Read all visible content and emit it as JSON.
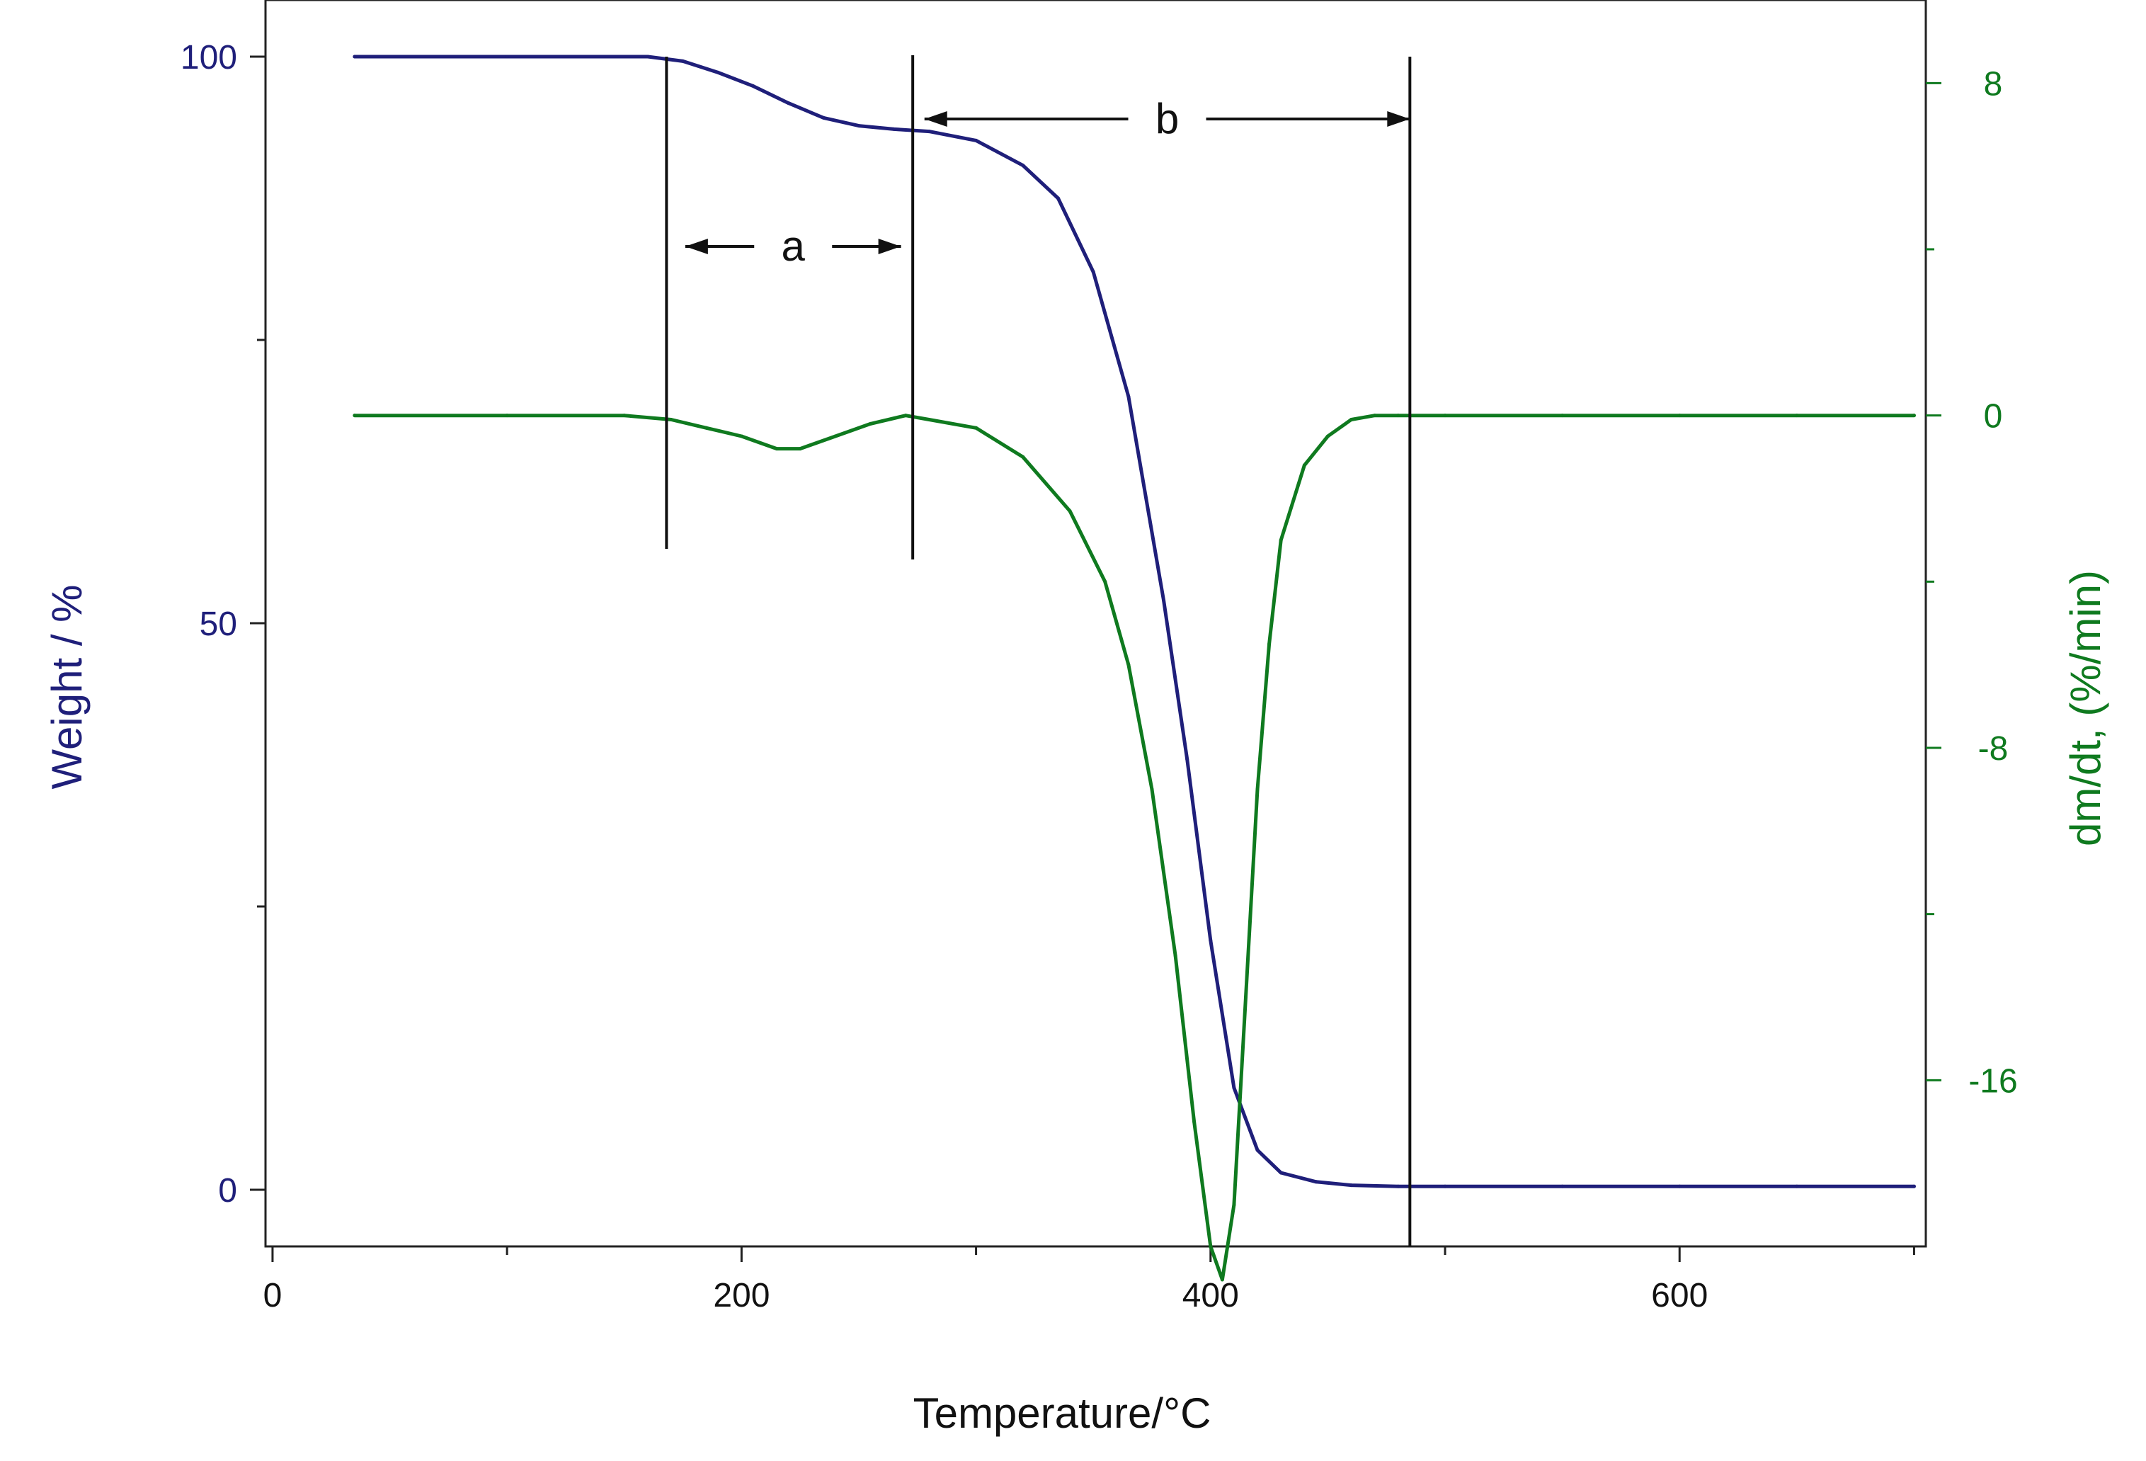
{
  "chart_data": {
    "type": "line",
    "title": "",
    "xlabel": "Temperature/°C",
    "ylabel_left": "Weight / %",
    "ylabel_right": "dm/dt, (%/min)",
    "xlim": [
      -3,
      705
    ],
    "ylim_left": [
      -5,
      105
    ],
    "ylim_right": [
      -20,
      10
    ],
    "x_ticks": [
      0,
      200,
      400,
      600
    ],
    "y_left_ticks": [
      0,
      50,
      100
    ],
    "y_right_ticks": [
      8,
      0,
      -8,
      -16
    ],
    "grid": false,
    "colors": {
      "weight": "#1f1f7a",
      "dmdt": "#0f7a1f",
      "annotation": "#111111"
    },
    "series": [
      {
        "name": "Weight",
        "axis": "left",
        "x": [
          35,
          100,
          160,
          175,
          190,
          205,
          220,
          235,
          250,
          265,
          280,
          300,
          320,
          335,
          350,
          365,
          380,
          390,
          400,
          410,
          420,
          430,
          445,
          460,
          480,
          500,
          550,
          600,
          650,
          700
        ],
        "values": [
          100,
          100,
          100,
          99.6,
          98.6,
          97.4,
          95.9,
          94.6,
          93.9,
          93.6,
          93.4,
          92.6,
          90.4,
          87.5,
          81.0,
          70.0,
          52.0,
          38.0,
          22.0,
          9.0,
          3.5,
          1.5,
          0.7,
          0.4,
          0.3,
          0.3,
          0.3,
          0.3,
          0.3,
          0.3
        ]
      },
      {
        "name": "dm/dt",
        "axis": "right",
        "x": [
          35,
          100,
          150,
          170,
          185,
          200,
          215,
          225,
          240,
          255,
          270,
          280,
          300,
          320,
          340,
          355,
          365,
          375,
          385,
          393,
          400,
          405,
          410,
          415,
          420,
          425,
          430,
          440,
          450,
          460,
          470,
          480,
          500,
          550,
          600,
          650,
          700
        ],
        "values": [
          0,
          0,
          0,
          -0.1,
          -0.3,
          -0.5,
          -0.8,
          -0.8,
          -0.5,
          -0.2,
          0.0,
          -0.1,
          -0.3,
          -1.0,
          -2.3,
          -4.0,
          -6.0,
          -9.0,
          -13.0,
          -17.0,
          -20.0,
          -20.8,
          -19.0,
          -14.0,
          -9.0,
          -5.5,
          -3.0,
          -1.2,
          -0.5,
          -0.1,
          0,
          0,
          0,
          0,
          0,
          0,
          0
        ]
      }
    ],
    "annotations": [
      {
        "type": "vline",
        "x": 168,
        "label": ""
      },
      {
        "type": "vline",
        "x": 273,
        "label": ""
      },
      {
        "type": "vline",
        "x": 485,
        "label": ""
      },
      {
        "type": "span-arrow",
        "label": "a",
        "x_from": 176,
        "x_to": 268
      },
      {
        "type": "span-arrow",
        "label": "b",
        "x_from": 278,
        "x_to": 485
      }
    ]
  }
}
